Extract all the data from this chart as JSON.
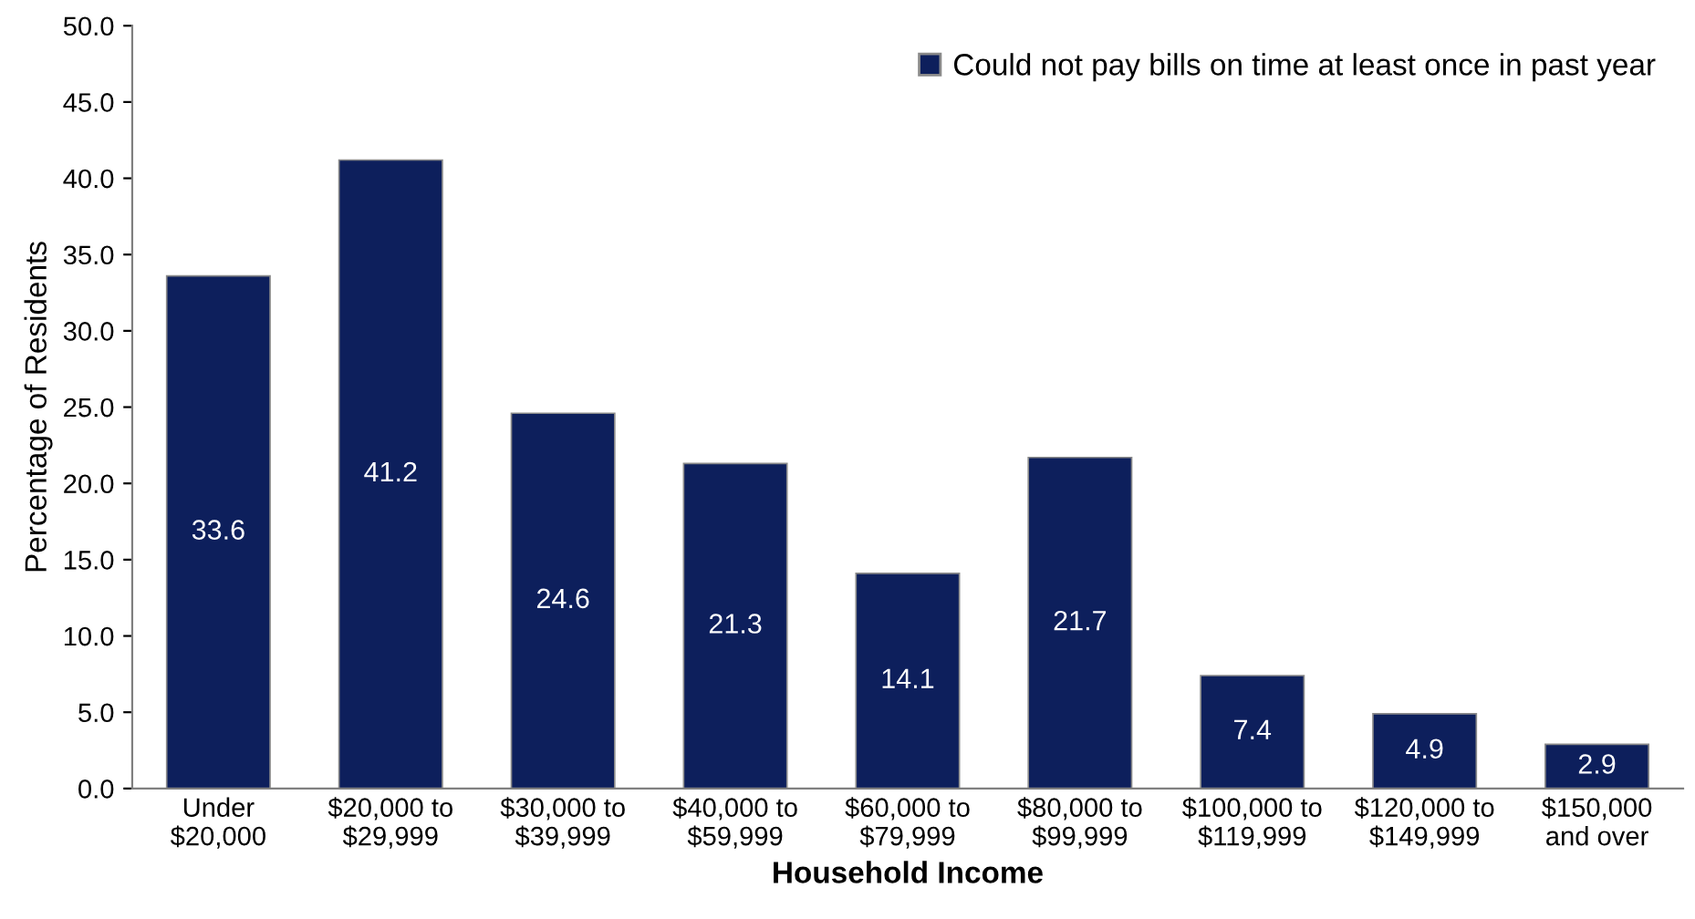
{
  "chart_data": {
    "type": "bar",
    "xlabel": "Household Income",
    "ylabel": "Percentage of Residents",
    "categories": [
      "Under\n$20,000",
      "$20,000 to\n$29,999",
      "$30,000 to\n$39,999",
      "$40,000 to\n$59,999",
      "$60,000 to\n$79,999",
      "$80,000 to\n$99,999",
      "$100,000 to\n$119,999",
      "$120,000 to\n$149,999",
      "$150,000\nand over"
    ],
    "series": [
      {
        "name": "Could not pay bills on time at least once in past year",
        "color": "#0d1f5c",
        "values": [
          33.6,
          41.2,
          24.6,
          21.3,
          14.1,
          21.7,
          7.4,
          4.9,
          2.9
        ]
      }
    ],
    "ylim": [
      0,
      50
    ],
    "yticks": [
      {
        "value": 0,
        "label": "0.0"
      },
      {
        "value": 5,
        "label": "5.0"
      },
      {
        "value": 10,
        "label": "10.0"
      },
      {
        "value": 15,
        "label": "15.0"
      },
      {
        "value": 20,
        "label": "20.0"
      },
      {
        "value": 25,
        "label": "25.0"
      },
      {
        "value": 30,
        "label": "30.0"
      },
      {
        "value": 35,
        "label": "35.0"
      },
      {
        "value": 40,
        "label": "40.0"
      },
      {
        "value": 45,
        "label": "45.0"
      },
      {
        "value": 50,
        "label": "50.0"
      }
    ],
    "data_labels": true,
    "grid": false,
    "legend": "top right"
  }
}
